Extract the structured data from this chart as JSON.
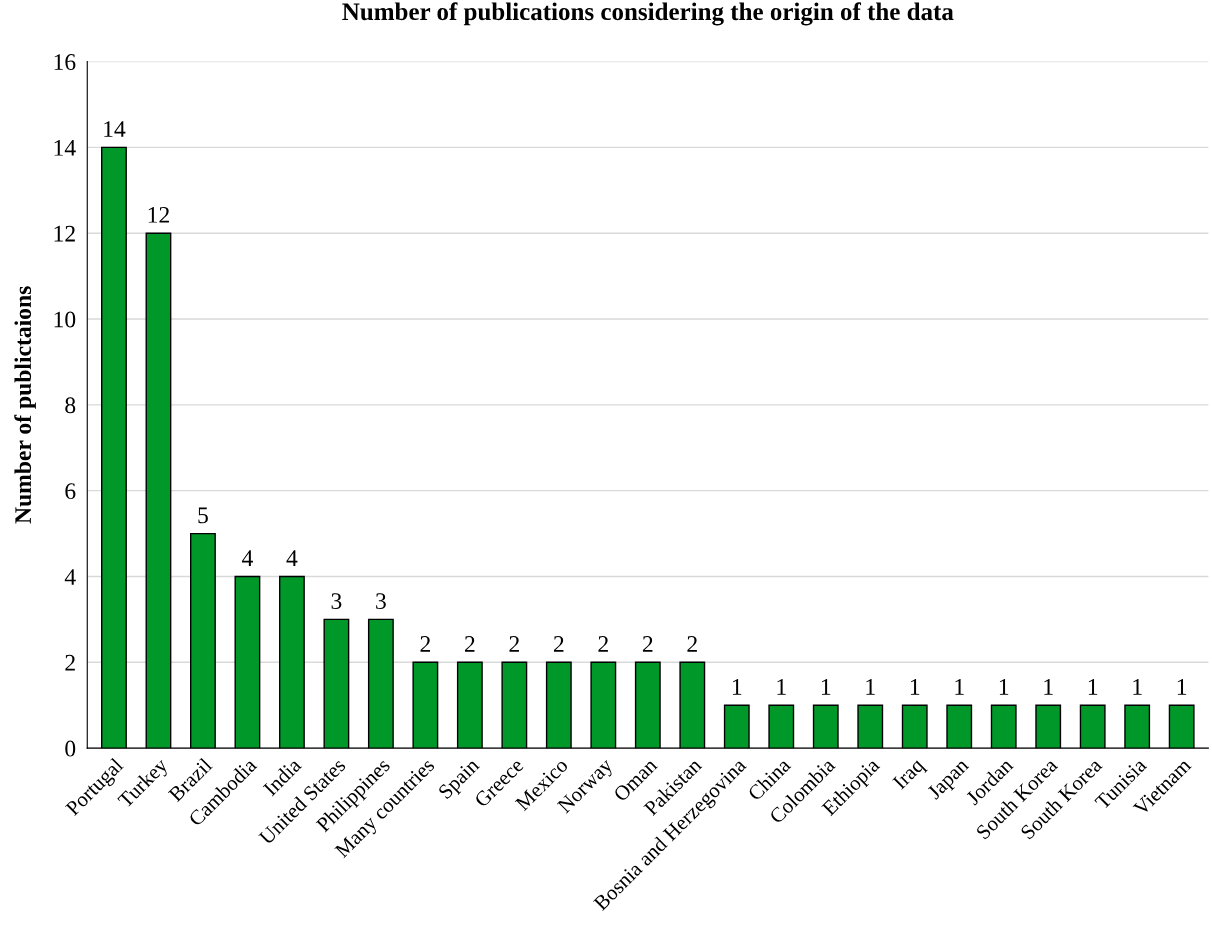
{
  "chart_data": {
    "type": "bar",
    "title": "Number of publications considering the origin of the data",
    "ylabel": "Number of publictaions",
    "categories": [
      "Portugal",
      "Turkey",
      "Brazil",
      "Cambodia",
      "India",
      "United States",
      "Philippines",
      "Many countries",
      "Spain",
      "Greece",
      "Mexico",
      "Norway",
      "Oman",
      "Pakistan",
      "Bosnia and Herzegovina",
      "China",
      "Colombia",
      "Ethiopia",
      "Iraq",
      "Japan",
      "Jordan",
      "South Korea",
      "South Korea",
      "Tunisia",
      "Vietnam"
    ],
    "values": [
      14,
      12,
      5,
      4,
      4,
      3,
      3,
      2,
      2,
      2,
      2,
      2,
      2,
      2,
      1,
      1,
      1,
      1,
      1,
      1,
      1,
      1,
      1,
      1,
      1
    ],
    "color": "#009929",
    "ylim": [
      0,
      16
    ],
    "yticks": [
      0,
      2,
      4,
      6,
      8,
      10,
      12,
      14,
      16
    ],
    "grid": "y",
    "data_labels": true,
    "legend": false
  }
}
